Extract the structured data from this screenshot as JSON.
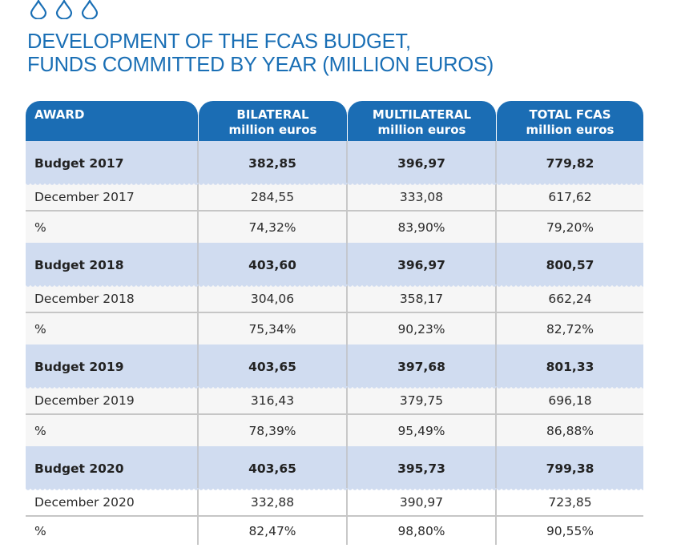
{
  "icons": [
    "water-drop-icon",
    "water-drop-icon",
    "water-drop-icon"
  ],
  "colors": {
    "brand_blue": "#1b6db4",
    "title_blue": "#1a6fb5",
    "budget_row_bg": "#d0dcf0",
    "detail_row_bg": "#f6f6f6"
  },
  "title": {
    "line1": "DEVELOPMENT OF THE FCAS BUDGET,",
    "line2": "FUNDS COMMITTED BY YEAR (MILLION EUROS)"
  },
  "table": {
    "headers": [
      {
        "title": "AWARD",
        "sub": ""
      },
      {
        "title": "BILATERAL",
        "sub": "million euros"
      },
      {
        "title": "MULTILATERAL",
        "sub": "million euros"
      },
      {
        "title": "TOTAL FCAS",
        "sub": "million euros"
      }
    ],
    "rows": [
      {
        "type": "budget",
        "cells": [
          "Budget  2017",
          "382,85",
          "396,97",
          "779,82"
        ]
      },
      {
        "type": "december",
        "cells": [
          "December 2017",
          "284,55",
          "333,08",
          "617,62"
        ]
      },
      {
        "type": "pct",
        "cells": [
          "%",
          "74,32%",
          "83,90%",
          "79,20%"
        ]
      },
      {
        "type": "budget",
        "cells": [
          "Budget  2018",
          "403,60",
          "396,97",
          "800,57"
        ]
      },
      {
        "type": "december",
        "cells": [
          "December 2018",
          "304,06",
          "358,17",
          "662,24"
        ]
      },
      {
        "type": "pct",
        "cells": [
          "%",
          "75,34%",
          "90,23%",
          "82,72%"
        ]
      },
      {
        "type": "budget",
        "cells": [
          "Budget  2019",
          "403,65",
          "397,68",
          "801,33"
        ]
      },
      {
        "type": "december",
        "cells": [
          "December 2019",
          "316,43",
          "379,75",
          "696,18"
        ]
      },
      {
        "type": "pct",
        "cells": [
          "%",
          "78,39%",
          "95,49%",
          "86,88%"
        ]
      },
      {
        "type": "budget",
        "cells": [
          "Budget  2020",
          "403,65",
          "395,73",
          "799,38"
        ]
      },
      {
        "type": "december",
        "cells": [
          "December 2020",
          "332,88",
          "390,97",
          "723,85"
        ]
      },
      {
        "type": "pct",
        "cells": [
          "%",
          "82,47%",
          "98,80%",
          "90,55%"
        ]
      }
    ]
  }
}
